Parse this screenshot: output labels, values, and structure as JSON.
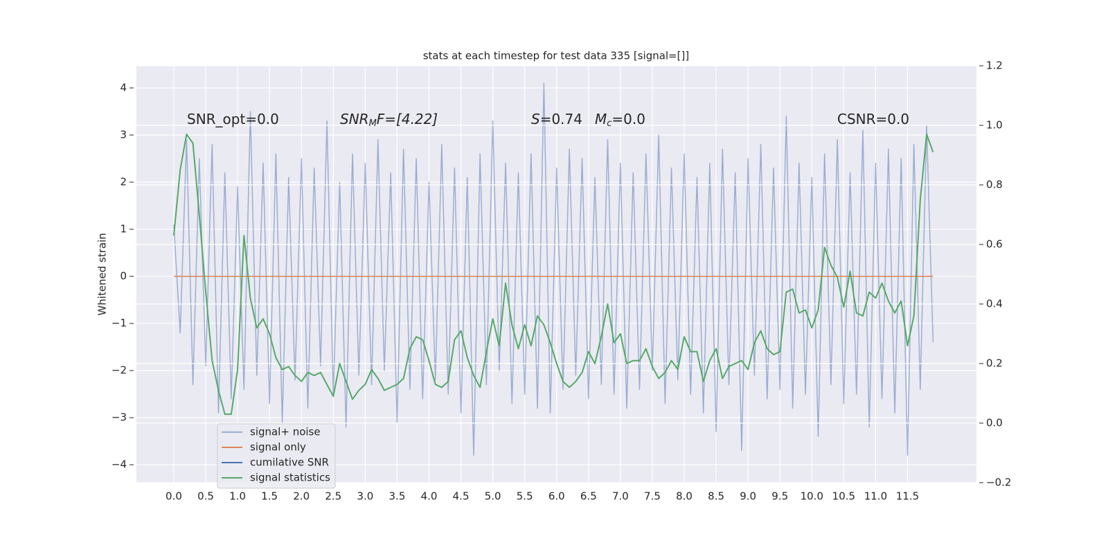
{
  "chart_data": {
    "type": "line",
    "title": "stats at each timestep for test data 335 [signal=[]]",
    "ylabel": "Whitened strain",
    "x": [
      0.0,
      0.1,
      0.2,
      0.3,
      0.4,
      0.5,
      0.6,
      0.7,
      0.8,
      0.9,
      1.0,
      1.1,
      1.2,
      1.3,
      1.4,
      1.5,
      1.6,
      1.7,
      1.8,
      1.9,
      2.0,
      2.1,
      2.2,
      2.3,
      2.4,
      2.5,
      2.6,
      2.7,
      2.8,
      2.9,
      3.0,
      3.1,
      3.2,
      3.3,
      3.4,
      3.5,
      3.6,
      3.7,
      3.8,
      3.9,
      4.0,
      4.1,
      4.2,
      4.3,
      4.4,
      4.5,
      4.6,
      4.7,
      4.8,
      4.9,
      5.0,
      5.1,
      5.2,
      5.3,
      5.4,
      5.5,
      5.6,
      5.7,
      5.8,
      5.9,
      6.0,
      6.1,
      6.2,
      6.3,
      6.4,
      6.5,
      6.6,
      6.7,
      6.8,
      6.9,
      7.0,
      7.1,
      7.2,
      7.3,
      7.4,
      7.5,
      7.6,
      7.7,
      7.8,
      7.9,
      8.0,
      8.1,
      8.2,
      8.3,
      8.4,
      8.5,
      8.6,
      8.7,
      8.8,
      8.9,
      9.0,
      9.1,
      9.2,
      9.3,
      9.4,
      9.5,
      9.6,
      9.7,
      9.8,
      9.9,
      10.0,
      10.1,
      10.2,
      10.3,
      10.4,
      10.5,
      10.6,
      10.7,
      10.8,
      10.9,
      11.0,
      11.1,
      11.2,
      11.3,
      11.4,
      11.5,
      11.6,
      11.7,
      11.8,
      11.9
    ],
    "series": [
      {
        "name": "signal+ noise",
        "color": "#4c72b0",
        "opacity": 0.5,
        "values": [
          1.1,
          -1.2,
          2.9,
          -2.3,
          2.5,
          -1.9,
          2.8,
          -2.9,
          2.2,
          -2.6,
          1.9,
          -2.4,
          3.5,
          -2.1,
          2.4,
          -2.7,
          2.6,
          -3.1,
          2.1,
          -2.2,
          2.5,
          -2.8,
          2.3,
          -1.9,
          3.3,
          -2.5,
          2.0,
          -3.2,
          2.6,
          -2.1,
          2.4,
          -2.3,
          2.9,
          -2.0,
          2.2,
          -3.1,
          2.7,
          -2.4,
          2.5,
          -2.6,
          2.0,
          -2.2,
          2.8,
          -2.5,
          2.3,
          -2.9,
          2.1,
          -3.8,
          2.6,
          -2.3,
          3.3,
          -2.0,
          2.4,
          -2.7,
          2.2,
          -2.5,
          2.6,
          -2.8,
          4.1,
          -2.9,
          2.3,
          -2.4,
          2.7,
          -2.1,
          2.5,
          -2.6,
          2.1,
          -2.3,
          2.9,
          -2.5,
          2.4,
          -2.8,
          2.2,
          -2.4,
          2.6,
          -2.0,
          3.0,
          -2.7,
          2.3,
          -2.2,
          2.6,
          -2.5,
          2.1,
          -2.9,
          2.4,
          -3.3,
          2.7,
          -2.3,
          2.2,
          -3.7,
          2.5,
          -2.1,
          2.8,
          -2.6,
          2.3,
          -2.4,
          3.4,
          -2.8,
          2.4,
          -2.5,
          2.1,
          -3.4,
          2.6,
          -2.3,
          2.9,
          -2.7,
          2.2,
          -2.5,
          3.1,
          -3.2,
          2.4,
          -2.6,
          2.7,
          -2.9,
          2.5,
          -3.8,
          2.8,
          -2.4,
          3.2,
          -1.4
        ]
      },
      {
        "name": "signal only",
        "color": "#dd8452",
        "opacity": 1,
        "values": [
          0,
          0,
          0,
          0,
          0,
          0,
          0,
          0,
          0,
          0,
          0,
          0,
          0,
          0,
          0,
          0,
          0,
          0,
          0,
          0,
          0,
          0,
          0,
          0,
          0,
          0,
          0,
          0,
          0,
          0,
          0,
          0,
          0,
          0,
          0,
          0,
          0,
          0,
          0,
          0,
          0,
          0,
          0,
          0,
          0,
          0,
          0,
          0,
          0,
          0,
          0,
          0,
          0,
          0,
          0,
          0,
          0,
          0,
          0,
          0,
          0,
          0,
          0,
          0,
          0,
          0,
          0,
          0,
          0,
          0,
          0,
          0,
          0,
          0,
          0,
          0,
          0,
          0,
          0,
          0,
          0,
          0,
          0,
          0,
          0,
          0,
          0,
          0,
          0,
          0,
          0,
          0,
          0,
          0,
          0,
          0,
          0,
          0,
          0,
          0,
          0,
          0,
          0,
          0,
          0,
          0,
          0,
          0,
          0,
          0,
          0,
          0,
          0,
          0,
          0,
          0,
          0,
          0,
          0,
          0
        ]
      },
      {
        "name": "cumilative SNR",
        "color": "#4c72b0",
        "opacity": 1,
        "values": [
          null,
          null,
          null,
          null,
          null,
          null,
          null,
          null,
          null,
          null,
          null,
          null,
          null,
          null,
          null,
          null,
          null,
          null,
          null,
          null,
          null,
          null,
          null,
          null,
          null,
          null,
          null,
          null,
          null,
          null,
          null,
          null,
          null,
          null,
          null,
          null,
          null,
          null,
          null,
          null,
          null,
          null,
          null,
          null,
          null,
          null,
          null,
          null,
          null,
          null,
          null,
          null,
          null,
          null,
          null,
          null,
          null,
          null,
          null,
          null,
          null,
          null,
          null,
          null,
          null,
          null,
          null,
          null,
          null,
          null,
          null,
          null,
          null,
          null,
          null,
          null,
          null,
          null,
          null,
          null,
          null,
          null,
          null,
          null,
          null,
          null,
          null,
          null,
          null,
          null,
          null,
          null,
          null,
          null,
          null,
          null,
          null,
          null,
          null,
          null,
          null,
          null,
          null,
          null,
          null,
          null,
          null,
          null,
          null,
          null,
          null,
          null,
          null,
          null,
          null,
          null,
          null,
          null,
          null,
          null
        ]
      },
      {
        "name": "signal statistics",
        "color": "#55a868",
        "opacity": 1,
        "axis": "y2",
        "values": [
          0.63,
          0.85,
          0.97,
          0.94,
          0.7,
          0.44,
          0.21,
          0.11,
          0.03,
          0.03,
          0.18,
          0.63,
          0.42,
          0.32,
          0.35,
          0.3,
          0.22,
          0.18,
          0.19,
          0.16,
          0.14,
          0.17,
          0.16,
          0.17,
          0.13,
          0.09,
          0.2,
          0.14,
          0.08,
          0.11,
          0.13,
          0.18,
          0.15,
          0.11,
          0.12,
          0.13,
          0.15,
          0.25,
          0.29,
          0.28,
          0.21,
          0.13,
          0.12,
          0.14,
          0.28,
          0.31,
          0.22,
          0.16,
          0.12,
          0.24,
          0.35,
          0.26,
          0.47,
          0.33,
          0.25,
          0.33,
          0.26,
          0.36,
          0.33,
          0.27,
          0.2,
          0.14,
          0.12,
          0.14,
          0.17,
          0.24,
          0.2,
          0.29,
          0.4,
          0.27,
          0.3,
          0.2,
          0.21,
          0.21,
          0.25,
          0.19,
          0.15,
          0.17,
          0.21,
          0.18,
          0.29,
          0.24,
          0.24,
          0.14,
          0.21,
          0.25,
          0.15,
          0.19,
          0.2,
          0.21,
          0.18,
          0.27,
          0.31,
          0.25,
          0.23,
          0.24,
          0.44,
          0.45,
          0.37,
          0.38,
          0.32,
          0.38,
          0.59,
          0.53,
          0.49,
          0.39,
          0.51,
          0.37,
          0.36,
          0.44,
          0.42,
          0.47,
          0.41,
          0.37,
          0.41,
          0.26,
          0.36,
          0.75,
          0.97,
          0.91
        ]
      }
    ],
    "xlim": [
      -0.586,
      12.58
    ],
    "xticks": [
      {
        "value": 0,
        "label": "0.0"
      },
      {
        "value": 0.5,
        "label": "0.5"
      },
      {
        "value": 1,
        "label": "1.0"
      },
      {
        "value": 1.5,
        "label": "1.5"
      },
      {
        "value": 2,
        "label": "2.0"
      },
      {
        "value": 2.5,
        "label": "2.5"
      },
      {
        "value": 3,
        "label": "3.0"
      },
      {
        "value": 3.5,
        "label": "3.5"
      },
      {
        "value": 4,
        "label": "4.0"
      },
      {
        "value": 4.5,
        "label": "4.5"
      },
      {
        "value": 5,
        "label": "5.0"
      },
      {
        "value": 5.5,
        "label": "5.5"
      },
      {
        "value": 6,
        "label": "6.0"
      },
      {
        "value": 6.5,
        "label": "6.5"
      },
      {
        "value": 7,
        "label": "7.0"
      },
      {
        "value": 7.5,
        "label": "7.5"
      },
      {
        "value": 8,
        "label": "8.0"
      },
      {
        "value": 8.5,
        "label": "8.5"
      },
      {
        "value": 9,
        "label": "9.0"
      },
      {
        "value": 9.5,
        "label": "9.5"
      },
      {
        "value": 10,
        "label": "10.0"
      },
      {
        "value": 10.5,
        "label": "10.5"
      },
      {
        "value": 11,
        "label": "11.0"
      },
      {
        "value": 11.5,
        "label": "11.5"
      }
    ],
    "ylim": [
      -4.38,
      4.47
    ],
    "yticks": [
      {
        "value": -4,
        "label": "−4"
      },
      {
        "value": -3,
        "label": "−3"
      },
      {
        "value": -2,
        "label": "−2"
      },
      {
        "value": -1,
        "label": "−1"
      },
      0,
      1,
      2,
      3,
      4
    ],
    "y2lim": [
      -0.2,
      1.2
    ],
    "y2ticks": [
      {
        "value": -0.2,
        "label": "−0.2"
      },
      {
        "value": 0,
        "label": "0.0"
      },
      {
        "value": 0.2,
        "label": "0.2"
      },
      {
        "value": 0.4,
        "label": "0.4"
      },
      {
        "value": 0.6,
        "label": "0.6"
      },
      {
        "value": 0.8,
        "label": "0.8"
      },
      {
        "value": 1.0,
        "label": "1.0"
      },
      {
        "value": 1.2,
        "label": "1.2"
      }
    ],
    "grid": true,
    "legend": "lower left",
    "annotations": [
      {
        "main": "SNR_opt=0.0"
      },
      {
        "main": "SNR",
        "sub": "M",
        "rest": "F=[4.22]"
      },
      {
        "main": "S",
        "rest": "=0.74"
      },
      {
        "main": "M",
        "sub": "c",
        "rest": "=0.0"
      },
      {
        "main": "CSNR=0.0"
      }
    ]
  }
}
